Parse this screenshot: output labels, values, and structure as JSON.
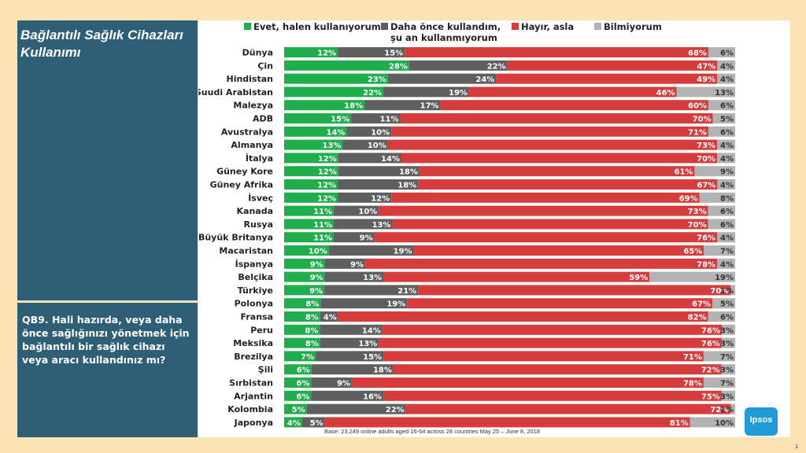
{
  "panel": {
    "title": "Bağlantılı Sağlık Cihazları Kullanımı",
    "question": "QB9. Hali hazırda, veya daha önce sağlığınızı yönetmek için bağlantılı bir sağlık cihazı veya aracı kullandınız mı?"
  },
  "footnote": "Base: 23,249 online adults aged 16-64 across 28 countries  May 25 – June 8, 2018",
  "page_number": "1",
  "logo_text": "Ipsos",
  "colors": {
    "evet": "#1fae4b",
    "daha": "#5f5f5f",
    "hayir": "#d63c3c",
    "bilmiyorum": "#b3b3b3",
    "panel": "#2e5f77",
    "background": "#fbe3b3"
  },
  "chart_data": {
    "type": "bar",
    "orientation": "horizontal",
    "stacked": true,
    "xlim": [
      0,
      100
    ],
    "legend_position": "top",
    "series": [
      {
        "name": "Evet, halen kullanıyorum",
        "color": "#1fae4b",
        "values": [
          12,
          28,
          23,
          22,
          18,
          15,
          14,
          13,
          12,
          12,
          12,
          12,
          11,
          11,
          11,
          10,
          9,
          9,
          9,
          8,
          8,
          8,
          8,
          7,
          6,
          6,
          6,
          5,
          4
        ]
      },
      {
        "name": "Daha önce kullandım, şu an kullanmıyorum",
        "color": "#5f5f5f",
        "values": [
          15,
          22,
          24,
          19,
          17,
          11,
          10,
          10,
          14,
          18,
          18,
          12,
          10,
          13,
          9,
          19,
          9,
          13,
          21,
          19,
          4,
          14,
          13,
          15,
          18,
          9,
          16,
          22,
          5
        ]
      },
      {
        "name": "Hayır, asla",
        "color": "#d63c3c",
        "values": [
          68,
          47,
          49,
          46,
          60,
          70,
          71,
          73,
          70,
          61,
          67,
          69,
          73,
          70,
          76,
          65,
          78,
          59,
          70,
          67,
          82,
          76,
          76,
          71,
          72,
          78,
          75,
          72,
          81
        ]
      },
      {
        "name": "Bilmiyorum",
        "color": "#b3b3b3",
        "values": [
          6,
          4,
          4,
          13,
          6,
          5,
          6,
          4,
          4,
          9,
          4,
          8,
          6,
          6,
          4,
          7,
          4,
          19,
          1,
          5,
          6,
          3,
          3,
          7,
          3,
          7,
          3,
          1,
          10
        ]
      }
    ],
    "value_labels": [
      [
        "12%",
        "15%",
        "68%",
        "6%"
      ],
      [
        "28%",
        "22%",
        "47%",
        "4%"
      ],
      [
        "23%",
        "24%",
        "49%",
        "4%"
      ],
      [
        "22%",
        "19%",
        "46%",
        "13%"
      ],
      [
        "18%",
        "17%",
        "60%",
        "6%"
      ],
      [
        "15%",
        "11%",
        "70%",
        "5%"
      ],
      [
        "14%",
        "10%",
        "71%",
        "6%"
      ],
      [
        "13%",
        "10%",
        "73%",
        "4%"
      ],
      [
        "12%",
        "14%",
        "70%",
        "4%"
      ],
      [
        "12%",
        "18%",
        "61%",
        "9%"
      ],
      [
        "12%",
        "18%",
        "67%",
        "4%"
      ],
      [
        "12%",
        "12%",
        "69%",
        "8%"
      ],
      [
        "11%",
        "10%",
        "73%",
        "6%"
      ],
      [
        "11%",
        "13%",
        "70%",
        "6%"
      ],
      [
        "11%",
        "9%",
        "76%",
        "4%"
      ],
      [
        "10%",
        "19%",
        "65%",
        "7%"
      ],
      [
        "9%",
        "9%",
        "78%",
        "4%"
      ],
      [
        "9%",
        "13%",
        "59%",
        "19%"
      ],
      [
        "9%",
        "21%",
        "70%",
        "1%"
      ],
      [
        "8%",
        "19%",
        "67%",
        "5%"
      ],
      [
        "8%",
        "4%",
        "82%",
        "6%"
      ],
      [
        "8%",
        "14%",
        "76%",
        "3%"
      ],
      [
        "8%",
        "13%",
        "76%",
        "3%"
      ],
      [
        "7%",
        "15%",
        "71%",
        "7%"
      ],
      [
        "6%",
        "18%",
        "72%",
        "3%"
      ],
      [
        "6%",
        "9%",
        "78%",
        "7%"
      ],
      [
        "6%",
        "16%",
        "75%",
        "3%"
      ],
      [
        "5%",
        "22%",
        "72%",
        "1%"
      ],
      [
        "4%",
        "5%",
        "81%",
        "10%"
      ]
    ],
    "categories": [
      "Dünya",
      "Çin",
      "Hindistan",
      "Suudi Arabistan",
      "Malezya",
      "ADB",
      "Avustralya",
      "Almanya",
      "İtalya",
      "Güney Kore",
      "Güney Afrika",
      "İsveç",
      "Kanada",
      "Rusya",
      "Büyük Britanya",
      "Macaristan",
      "İspanya",
      "Belçika",
      "Türkiye",
      "Polonya",
      "Fransa",
      "Peru",
      "Meksika",
      "Brezilya",
      "Şili",
      "Sırbistan",
      "Arjantin",
      "Kolombia",
      "Japonya"
    ]
  }
}
